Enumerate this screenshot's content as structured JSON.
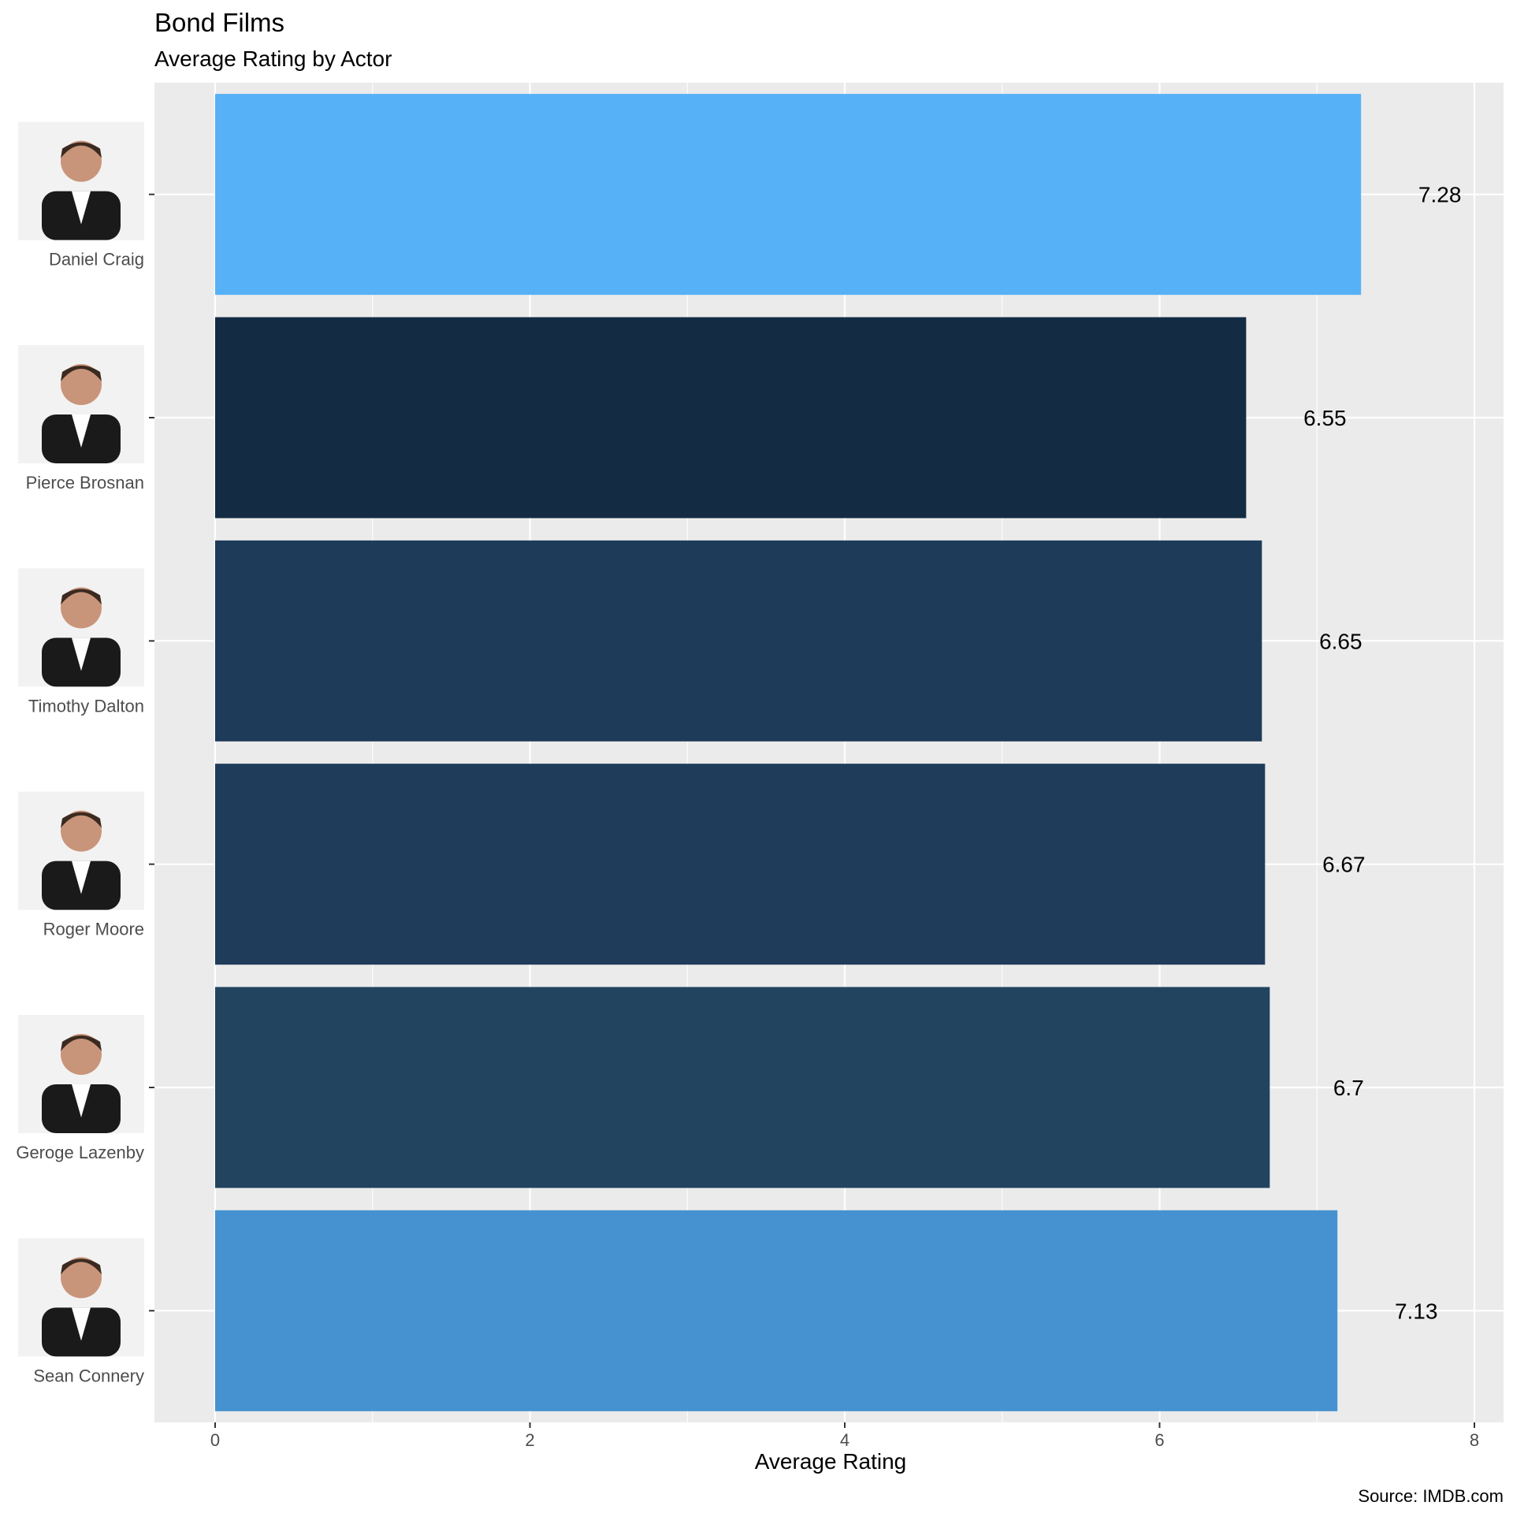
{
  "chart_data": {
    "type": "bar",
    "orientation": "horizontal",
    "title": "Bond Films",
    "subtitle": "Average Rating by Actor",
    "xlabel": "Average Rating",
    "ylabel": "",
    "caption": "Source: IMDB.com",
    "xlim": [
      0,
      8
    ],
    "xticks": [
      "0",
      "2",
      "4",
      "6",
      "8"
    ],
    "grid": true,
    "legend": "none",
    "categories": [
      "Daniel Craig",
      "Pierce Brosnan",
      "Timothy Dalton",
      "Roger Moore",
      "Geroge Lazenby",
      "Sean Connery"
    ],
    "values": [
      7.28,
      6.55,
      6.65,
      6.67,
      6.7,
      7.13
    ],
    "value_labels": [
      "7.28",
      "6.55",
      "6.65",
      "6.67",
      "6.7",
      "7.13"
    ],
    "colors": [
      "#56b1f7",
      "#132b43",
      "#1e3b59",
      "#1f3c5b",
      "#22445f",
      "#4692d0"
    ],
    "category_icons": [
      "daniel-craig-photo",
      "pierce-brosnan-photo",
      "timothy-dalton-photo",
      "roger-moore-photo",
      "george-lazenby-photo",
      "sean-connery-photo"
    ]
  }
}
